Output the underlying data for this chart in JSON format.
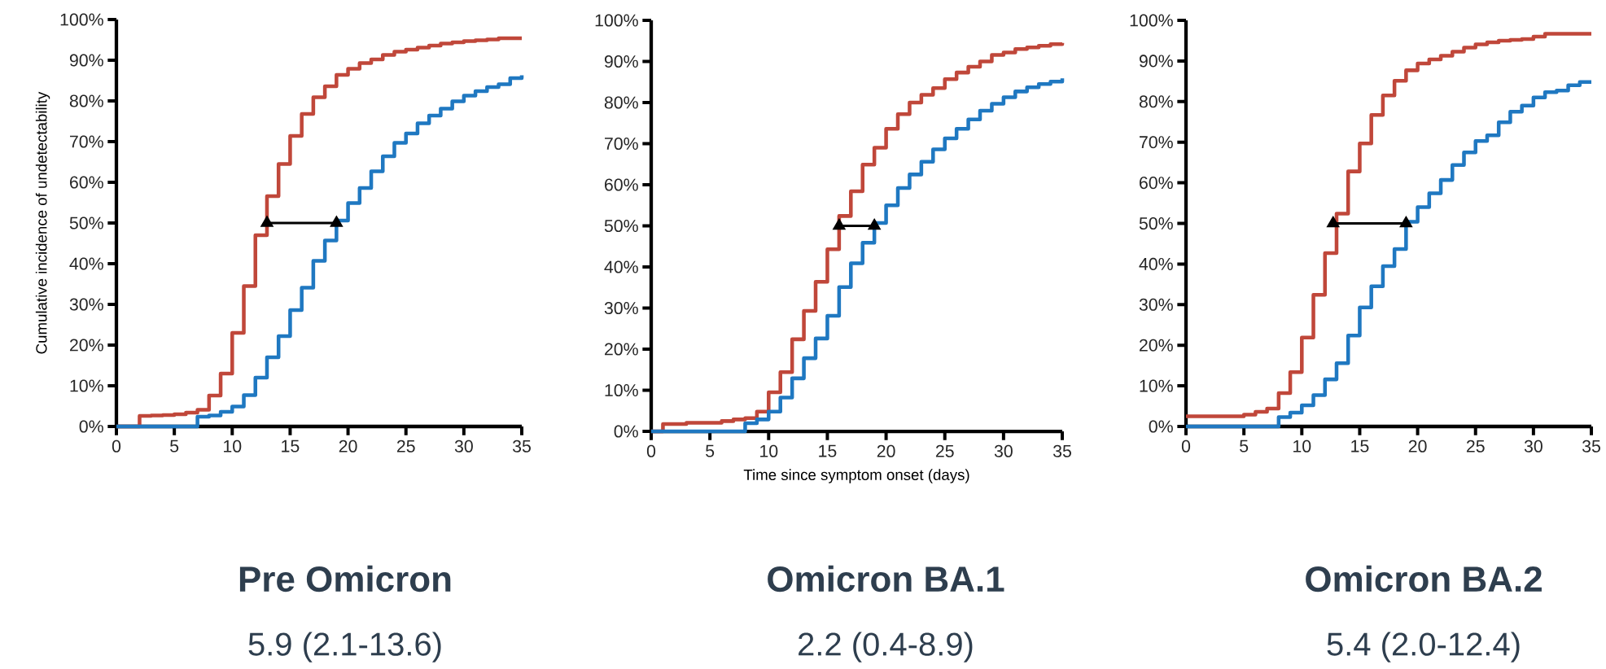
{
  "chart_data": [
    {
      "type": "step",
      "ylabel": "Cumulative incidence of undetectability",
      "x": [
        0,
        1,
        2,
        3,
        4,
        5,
        6,
        7,
        8,
        9,
        10,
        11,
        12,
        13,
        14,
        15,
        16,
        17,
        18,
        19,
        20,
        21,
        22,
        23,
        24,
        25,
        26,
        27,
        28,
        29,
        30,
        31,
        32,
        33,
        34,
        35
      ],
      "xlim": [
        0,
        35
      ],
      "ylim": [
        0,
        100
      ],
      "xticks": [
        0,
        5,
        10,
        15,
        20,
        25,
        30,
        35
      ],
      "yticks": [
        {
          "value": 0,
          "label": "0%"
        },
        {
          "value": 10,
          "label": "10%"
        },
        {
          "value": 20,
          "label": "20%"
        },
        {
          "value": 30,
          "label": "30%"
        },
        {
          "value": 40,
          "label": "40%"
        },
        {
          "value": 50,
          "label": "50%"
        },
        {
          "value": 60,
          "label": "60%"
        },
        {
          "value": 70,
          "label": "70%"
        },
        {
          "value": 80,
          "label": "80%"
        },
        {
          "value": 90,
          "label": "90%"
        },
        {
          "value": 100,
          "label": "100%"
        }
      ],
      "series": [
        {
          "color": "#c0473a",
          "values": [
            0,
            0,
            2.6,
            2.7,
            2.8,
            3.0,
            3.4,
            4.1,
            7.6,
            13,
            23,
            34.5,
            47,
            56.6,
            64.5,
            71.4,
            76.8,
            80.9,
            83.6,
            86.4,
            87.9,
            89.3,
            90.2,
            91.3,
            92.1,
            92.6,
            93.1,
            93.6,
            94.1,
            94.4,
            94.7,
            94.9,
            95.1,
            95.4,
            95.4,
            95.4
          ]
        },
        {
          "color": "#1f78c1",
          "values": [
            0,
            0,
            0,
            0,
            0,
            0,
            0,
            2.4,
            2.7,
            3.6,
            4.9,
            7.7,
            12,
            17,
            22.2,
            28.6,
            34.1,
            40.7,
            45.7,
            50.6,
            54.9,
            58.6,
            62.7,
            66.4,
            69.7,
            72,
            74.5,
            76.4,
            78.1,
            79.9,
            81.3,
            82.4,
            83.4,
            84.1,
            85.6,
            86.3
          ]
        },
        {
          "type": "line",
          "marker": "triangle",
          "color": "#000000",
          "x": [
            13,
            19
          ],
          "values": [
            50,
            50
          ]
        }
      ],
      "annotations": [
        "**Pre Omicron**",
        "5.9 (2.1-13.6)"
      ]
    },
    {
      "type": "step",
      "xlabel": "Time since symptom onset (days)",
      "x": [
        0,
        1,
        2,
        3,
        4,
        5,
        6,
        7,
        8,
        9,
        10,
        11,
        12,
        13,
        14,
        15,
        16,
        17,
        18,
        19,
        20,
        21,
        22,
        23,
        24,
        25,
        26,
        27,
        28,
        29,
        30,
        31,
        32,
        33,
        34,
        35
      ],
      "xlim": [
        0,
        35
      ],
      "ylim": [
        0,
        100
      ],
      "xticks": [
        0,
        5,
        10,
        15,
        20,
        25,
        30,
        35
      ],
      "yticks": [
        {
          "value": 0,
          "label": "0%"
        },
        {
          "value": 10,
          "label": "10%"
        },
        {
          "value": 20,
          "label": "20%"
        },
        {
          "value": 30,
          "label": "30%"
        },
        {
          "value": 40,
          "label": "40%"
        },
        {
          "value": 50,
          "label": "50%"
        },
        {
          "value": 60,
          "label": "60%"
        },
        {
          "value": 70,
          "label": "70%"
        },
        {
          "value": 80,
          "label": "80%"
        },
        {
          "value": 90,
          "label": "90%"
        },
        {
          "value": 100,
          "label": "100%"
        }
      ],
      "series": [
        {
          "color": "#c0473a",
          "values": [
            0,
            1.8,
            1.8,
            2.1,
            2.1,
            2.1,
            2.5,
            2.9,
            3.2,
            4.8,
            9.5,
            14.4,
            22.4,
            29.3,
            36.4,
            44.3,
            52.4,
            58.4,
            64.9,
            69,
            73.6,
            77.2,
            80,
            81.9,
            83.5,
            85.7,
            87.3,
            88.7,
            90,
            91.6,
            92.2,
            93,
            93.4,
            93.8,
            94.2,
            94.5
          ]
        },
        {
          "color": "#1f78c1",
          "values": [
            0,
            0,
            0,
            0,
            0,
            0,
            0,
            0,
            2,
            2.9,
            4.8,
            8.2,
            12.9,
            17.8,
            22.6,
            28.1,
            35.1,
            40.9,
            45.9,
            50.7,
            55,
            59.2,
            62.5,
            65.6,
            68.6,
            71.3,
            73.6,
            75.9,
            78,
            79.7,
            81.3,
            82.7,
            83.7,
            84.5,
            85.1,
            85.9
          ]
        },
        {
          "type": "line",
          "marker": "triangle",
          "color": "#000000",
          "x": [
            16,
            19
          ],
          "values": [
            50,
            50
          ]
        }
      ],
      "annotations": [
        "**Omicron BA.1**",
        "2.2 (0.4-8.9)"
      ]
    },
    {
      "type": "step",
      "x": [
        0,
        1,
        2,
        3,
        4,
        5,
        6,
        7,
        8,
        9,
        10,
        11,
        12,
        13,
        14,
        15,
        16,
        17,
        18,
        19,
        20,
        21,
        22,
        23,
        24,
        25,
        26,
        27,
        28,
        29,
        30,
        31,
        32,
        33,
        34,
        35
      ],
      "xlim": [
        0,
        35
      ],
      "ylim": [
        0,
        100
      ],
      "xticks": [
        0,
        5,
        10,
        15,
        20,
        25,
        30,
        35
      ],
      "yticks": [
        {
          "value": 0,
          "label": "0%"
        },
        {
          "value": 10,
          "label": "10%"
        },
        {
          "value": 20,
          "label": "20%"
        },
        {
          "value": 30,
          "label": "30%"
        },
        {
          "value": 40,
          "label": "40%"
        },
        {
          "value": 50,
          "label": "50%"
        },
        {
          "value": 60,
          "label": "60%"
        },
        {
          "value": 70,
          "label": "70%"
        },
        {
          "value": 80,
          "label": "80%"
        },
        {
          "value": 90,
          "label": "90%"
        },
        {
          "value": 100,
          "label": "100%"
        }
      ],
      "series": [
        {
          "color": "#c0473a",
          "values": [
            2.5,
            2.5,
            2.5,
            2.5,
            2.5,
            2.9,
            3.6,
            4.4,
            8.2,
            13.4,
            21.9,
            32.4,
            42.7,
            52.4,
            62.8,
            69.7,
            76.7,
            81.5,
            85.1,
            87.7,
            89.4,
            90.4,
            91.3,
            92.3,
            93.3,
            94.1,
            94.6,
            95,
            95.2,
            95.4,
            96,
            96.7,
            96.7,
            96.7,
            96.7,
            96.7
          ]
        },
        {
          "color": "#1f78c1",
          "values": [
            0,
            0,
            0,
            0,
            0,
            0,
            0,
            0,
            2.3,
            3.4,
            5.2,
            7.7,
            11.6,
            15.6,
            22.4,
            29.3,
            34.5,
            39.5,
            43.7,
            50.4,
            54,
            57.4,
            60.7,
            64.4,
            67.5,
            70.3,
            71.7,
            74.9,
            77.5,
            79,
            81,
            82.3,
            82.7,
            84,
            84.8,
            84.8
          ]
        },
        {
          "type": "line",
          "marker": "triangle",
          "color": "#000000",
          "x": [
            12.7,
            19
          ],
          "values": [
            50,
            50
          ]
        }
      ],
      "annotations": [
        "**Omicron BA.2**",
        "5.4 (2.0-12.4)"
      ]
    }
  ]
}
